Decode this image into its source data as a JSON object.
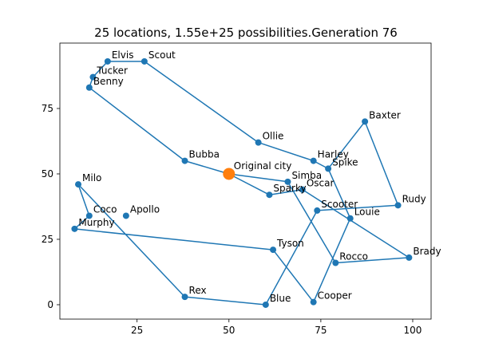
{
  "chart_data": {
    "type": "scatter",
    "title": "25 locations, 1.55e+25 possibilities.Generation 76",
    "xlabel": "",
    "ylabel": "",
    "xlim": [
      4,
      105
    ],
    "ylim": [
      -5.5,
      100
    ],
    "x_ticks": [
      25,
      50,
      75,
      100
    ],
    "y_ticks": [
      0,
      25,
      50,
      75
    ],
    "grid": false,
    "route_color": "#1f77b4",
    "start_color": "#ff7f0e",
    "start_label": "Original city",
    "start": {
      "x": 50,
      "y": 50
    },
    "cities": [
      {
        "name": "Elvis",
        "x": 17,
        "y": 93
      },
      {
        "name": "Scout",
        "x": 27,
        "y": 93
      },
      {
        "name": "Tucker",
        "x": 13,
        "y": 87
      },
      {
        "name": "Benny",
        "x": 12,
        "y": 83
      },
      {
        "name": "Baxter",
        "x": 87,
        "y": 70
      },
      {
        "name": "Ollie",
        "x": 58,
        "y": 62
      },
      {
        "name": "Bubba",
        "x": 38,
        "y": 55
      },
      {
        "name": "Harley",
        "x": 73,
        "y": 55
      },
      {
        "name": "Spike",
        "x": 77,
        "y": 52
      },
      {
        "name": "Simba",
        "x": 66,
        "y": 47
      },
      {
        "name": "Oscar",
        "x": 70,
        "y": 44
      },
      {
        "name": "Sparky",
        "x": 61,
        "y": 42
      },
      {
        "name": "Milo",
        "x": 9,
        "y": 46
      },
      {
        "name": "Rudy",
        "x": 96,
        "y": 38
      },
      {
        "name": "Scooter",
        "x": 74,
        "y": 36
      },
      {
        "name": "Apollo",
        "x": 22,
        "y": 34
      },
      {
        "name": "Coco",
        "x": 12,
        "y": 34
      },
      {
        "name": "Louie",
        "x": 83,
        "y": 33
      },
      {
        "name": "Murphy",
        "x": 8,
        "y": 29
      },
      {
        "name": "Tyson",
        "x": 62,
        "y": 21
      },
      {
        "name": "Brady",
        "x": 99,
        "y": 18
      },
      {
        "name": "Rocco",
        "x": 79,
        "y": 16
      },
      {
        "name": "Rex",
        "x": 38,
        "y": 3
      },
      {
        "name": "Cooper",
        "x": 73,
        "y": 1
      },
      {
        "name": "Blue",
        "x": 60,
        "y": 0
      }
    ],
    "route": [
      "Original city",
      "Sparky",
      "Oscar",
      "Brady",
      "Rocco",
      "Simba",
      "Original city",
      "Bubba",
      "Benny",
      "Tucker",
      "Elvis",
      "Scout",
      "Ollie",
      "Harley",
      "Spike",
      "Baxter",
      "Rudy",
      "Scooter",
      "Blue",
      "Rex",
      "Milo",
      "Coco",
      "Murphy",
      "Tyson",
      "Cooper",
      "Louie",
      "Spike"
    ]
  }
}
